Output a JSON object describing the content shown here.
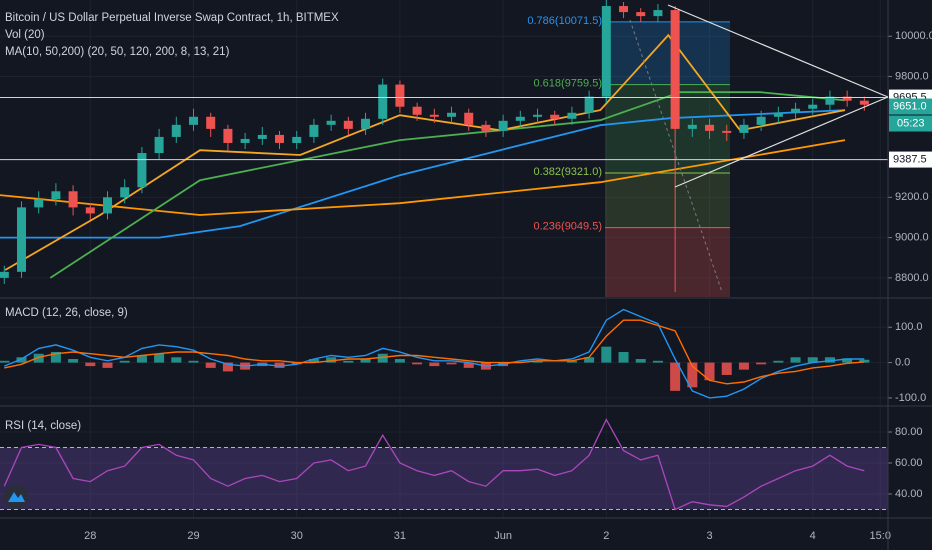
{
  "chart_data": [
    {
      "type": "candlestick",
      "title": "Bitcoin / US Dollar Perpetual Inverse Swap Contract, 1h, BITMEX",
      "subtitle": "Vol (20)",
      "indicator_label": "MA(10, 50,200) (20, 50, 120, 200, 8, 13, 21)",
      "up_color": "#26a69a",
      "down_color": "#ef5350",
      "xlim": [
        3,
        209.5
      ],
      "xticks": [
        {
          "value": 24,
          "label": "28"
        },
        {
          "value": 48,
          "label": "29"
        },
        {
          "value": 72,
          "label": "30"
        },
        {
          "value": 96,
          "label": "31"
        },
        {
          "value": 120,
          "label": "Jun"
        },
        {
          "value": 144,
          "label": "2"
        },
        {
          "value": 168,
          "label": "3"
        },
        {
          "value": 192,
          "label": "4"
        },
        {
          "value": 207.7,
          "label": "15:0"
        }
      ],
      "ylim": [
        8705,
        10180
      ],
      "yticks": [
        {
          "value": 8800,
          "label": "8800.0"
        },
        {
          "value": 9000,
          "label": "9000.0"
        },
        {
          "value": 9200,
          "label": "9200.0"
        },
        {
          "value": 9800,
          "label": "9800.0"
        },
        {
          "value": 10000,
          "label": "10000.0"
        }
      ],
      "grid": true,
      "x": [
        4,
        8,
        12,
        16,
        20,
        24,
        28,
        32,
        36,
        40,
        44,
        48,
        52,
        56,
        60,
        64,
        68,
        72,
        76,
        80,
        84,
        88,
        92,
        96,
        100,
        104,
        108,
        112,
        116,
        120,
        124,
        128,
        132,
        136,
        140,
        144,
        148,
        152,
        156,
        160,
        164,
        168,
        172,
        176,
        180,
        184,
        188,
        192,
        196,
        200,
        204
      ],
      "open": [
        8800,
        8830,
        9150,
        9190,
        9230,
        9150,
        9120,
        9200,
        9250,
        9420,
        9500,
        9560,
        9600,
        9540,
        9470,
        9490,
        9510,
        9470,
        9500,
        9560,
        9580,
        9540,
        9590,
        9760,
        9650,
        9610,
        9600,
        9620,
        9560,
        9530,
        9580,
        9600,
        9610,
        9590,
        9620,
        9700,
        10150,
        10120,
        10100,
        10130,
        9540,
        9560,
        9530,
        9520,
        9560,
        9600,
        9620,
        9640,
        9660,
        9700,
        9680
      ],
      "high": [
        8860,
        9180,
        9230,
        9270,
        9260,
        9170,
        9230,
        9290,
        9450,
        9540,
        9600,
        9640,
        9620,
        9560,
        9520,
        9550,
        9530,
        9530,
        9590,
        9610,
        9600,
        9620,
        9790,
        9780,
        9670,
        9640,
        9650,
        9640,
        9580,
        9610,
        9630,
        9640,
        9630,
        9650,
        9730,
        10180,
        10170,
        10140,
        10160,
        10150,
        9590,
        9590,
        9560,
        9590,
        9630,
        9650,
        9670,
        9690,
        9730,
        9730,
        9700
      ],
      "low": [
        8770,
        8800,
        9120,
        9160,
        9110,
        9090,
        9090,
        9170,
        9220,
        9390,
        9470,
        9530,
        9500,
        9430,
        9440,
        9460,
        9440,
        9440,
        9470,
        9530,
        9510,
        9510,
        9560,
        9620,
        9580,
        9570,
        9570,
        9530,
        9500,
        9500,
        9550,
        9570,
        9560,
        9560,
        9590,
        9670,
        10090,
        10070,
        10070,
        8730,
        9500,
        9490,
        9480,
        9490,
        9530,
        9570,
        9590,
        9610,
        9630,
        9650,
        9630
      ],
      "close": [
        8830,
        9150,
        9190,
        9230,
        9150,
        9120,
        9200,
        9250,
        9420,
        9500,
        9560,
        9600,
        9540,
        9470,
        9490,
        9510,
        9470,
        9500,
        9560,
        9580,
        9540,
        9590,
        9760,
        9650,
        9610,
        9600,
        9620,
        9560,
        9530,
        9580,
        9600,
        9610,
        9590,
        9620,
        9700,
        10150,
        10120,
        10100,
        10130,
        9540,
        9560,
        9530,
        9520,
        9560,
        9600,
        9620,
        9640,
        9660,
        9700,
        9680,
        9660
      ],
      "moving_averages": [
        {
          "color": "#2196f3",
          "x": [
            3,
            40,
            58.8,
            96,
            119.3,
            142.6,
            158.8,
            199.5
          ],
          "values": [
            9000,
            9000,
            9057,
            9310,
            9434,
            9558,
            9593,
            9633
          ]
        },
        {
          "color": "#ff9800",
          "x": [
            3,
            49.5,
            96,
            142.6,
            165.8,
            199.5
          ],
          "values": [
            9211,
            9112,
            9171,
            9275,
            9360,
            9484
          ]
        },
        {
          "color": "#4caf50",
          "x": [
            14.7,
            49.5,
            72.8,
            96,
            119.3,
            142.6,
            161.2,
            179.8,
            199.5
          ],
          "values": [
            8800,
            9285,
            9385,
            9484,
            9533,
            9583,
            9722,
            9722,
            9682
          ]
        },
        {
          "color": "#f5a623",
          "x": [
            4.2,
            26.3,
            49.5,
            72.8,
            96,
            119.3,
            142.6,
            158.4,
            175.1,
            199.5
          ],
          "values": [
            8839,
            9112,
            9434,
            9410,
            9608,
            9533,
            9633,
            10005,
            9533,
            9633
          ]
        }
      ],
      "fib_levels": [
        {
          "label": "0.786(10071.5)",
          "value": 10071.5,
          "color": "#2196f3",
          "zone_color": "rgba(33,150,243,0.22)"
        },
        {
          "label": "0.618(9759.5)",
          "value": 9759.5,
          "color": "#4caf50",
          "zone_color": "rgba(76,175,80,0.2)"
        },
        {
          "label": "0.382(9321.0)",
          "value": 9321.0,
          "color": "#8bc34a",
          "zone_color": "rgba(139,195,74,0.18)"
        },
        {
          "label": "0.236(9049.5)",
          "value": 9049.5,
          "color": "#ef5350",
          "zone_color": "rgba(239,83,80,0.25)"
        }
      ],
      "hlines": [
        9695.5,
        9387.5
      ],
      "last_price": {
        "value": 9651.0,
        "label": "9651.0"
      },
      "countdown": "05:23"
    },
    {
      "type": "macd",
      "title": "MACD (12, 26, close, 9)",
      "ylim": [
        -120,
        177
      ],
      "yticks": [
        {
          "value": 100,
          "label": "100.0"
        },
        {
          "value": 0,
          "label": "0.0"
        },
        {
          "value": -100,
          "label": "-100.0"
        }
      ],
      "x": [
        4,
        8,
        12,
        16,
        20,
        24,
        28,
        32,
        36,
        40,
        44,
        48,
        52,
        56,
        60,
        64,
        68,
        72,
        76,
        80,
        84,
        88,
        92,
        96,
        100,
        104,
        108,
        112,
        116,
        120,
        124,
        128,
        132,
        136,
        140,
        144,
        148,
        152,
        156,
        160,
        164,
        168,
        172,
        176,
        180,
        184,
        188,
        192,
        196,
        200,
        204
      ],
      "histogram": {
        "up_color": "#26a69a",
        "down_color": "#ef5350",
        "values": [
          5,
          15,
          25,
          30,
          10,
          -10,
          -15,
          5,
          20,
          25,
          15,
          5,
          -15,
          -25,
          -20,
          -10,
          -15,
          -5,
          10,
          15,
          5,
          10,
          25,
          10,
          -5,
          -10,
          -5,
          -15,
          -20,
          -10,
          0,
          5,
          0,
          5,
          15,
          45,
          30,
          10,
          5,
          -80,
          -70,
          -50,
          -35,
          -20,
          -5,
          5,
          15,
          15,
          15,
          12,
          8
        ]
      },
      "macd": {
        "color": "#2196f3",
        "values": [
          -10,
          10,
          40,
          50,
          35,
          15,
          5,
          15,
          40,
          50,
          45,
          35,
          10,
          -5,
          -10,
          -5,
          -10,
          -5,
          10,
          20,
          15,
          20,
          40,
          30,
          15,
          5,
          5,
          0,
          -10,
          -5,
          5,
          10,
          5,
          10,
          30,
          120,
          150,
          130,
          110,
          10,
          -80,
          -100,
          -95,
          -75,
          -45,
          -25,
          -10,
          0,
          5,
          10,
          10
        ]
      },
      "signal": {
        "color": "#ff6d00",
        "values": [
          -15,
          -5,
          15,
          25,
          30,
          25,
          20,
          15,
          20,
          25,
          30,
          30,
          25,
          20,
          10,
          5,
          5,
          0,
          0,
          5,
          10,
          10,
          15,
          20,
          20,
          15,
          10,
          5,
          0,
          0,
          0,
          5,
          5,
          5,
          15,
          75,
          120,
          120,
          105,
          90,
          -10,
          -50,
          -60,
          -55,
          -40,
          -30,
          -25,
          -15,
          -10,
          -2,
          2
        ]
      }
    },
    {
      "type": "line",
      "title": "RSI (14, close)",
      "ylim": [
        24.5,
        95.5
      ],
      "yticks": [
        {
          "value": 80,
          "label": "80.00"
        },
        {
          "value": 60,
          "label": "60.00"
        },
        {
          "value": 40,
          "label": "40.00"
        }
      ],
      "band": [
        30,
        70
      ],
      "band_color": "rgba(126,87,194,0.28)",
      "color": "#ab47bc",
      "x": [
        4,
        8,
        12,
        16,
        20,
        24,
        28,
        32,
        36,
        40,
        44,
        48,
        52,
        56,
        60,
        64,
        68,
        72,
        76,
        80,
        84,
        88,
        92,
        96,
        100,
        104,
        108,
        112,
        116,
        120,
        124,
        128,
        132,
        136,
        140,
        144,
        148,
        152,
        156,
        160,
        164,
        168,
        172,
        176,
        180,
        184,
        188,
        192,
        196,
        200,
        204
      ],
      "values": [
        45,
        70,
        72,
        70,
        50,
        48,
        55,
        58,
        70,
        72,
        65,
        62,
        50,
        45,
        50,
        52,
        48,
        50,
        60,
        62,
        55,
        58,
        78,
        60,
        55,
        52,
        55,
        48,
        45,
        55,
        55,
        56,
        52,
        55,
        65,
        88,
        68,
        62,
        65,
        30,
        35,
        33,
        32,
        38,
        45,
        50,
        55,
        58,
        65,
        58,
        55
      ]
    }
  ]
}
